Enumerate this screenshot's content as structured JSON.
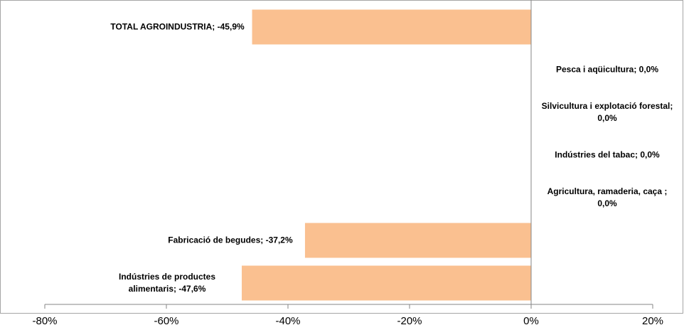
{
  "chart_data": {
    "type": "hbar",
    "values": [
      -45.9,
      0.0,
      0.0,
      0.0,
      0.0,
      -37.2,
      -47.6
    ],
    "value_labels": [
      "TOTAL AGROINDUSTRIA; -45,9%",
      "Pesca i aqüicultura; 0,0%",
      "Silvicultura i explotació forestal; 0,0%",
      "Indústries del tabac; 0,0%",
      "Agricultura, ramaderia, caça ; 0,0%",
      "Fabricació de begudes; -37,2%",
      "Indústries de productes alimentaris; -47,6%"
    ],
    "color": "#fac090",
    "xlim": [
      -80,
      20
    ],
    "xticks": [
      {
        "value": -80,
        "label": "-80%"
      },
      {
        "value": -60,
        "label": "-60%"
      },
      {
        "value": -40,
        "label": "-40%"
      },
      {
        "value": -20,
        "label": "-20%"
      },
      {
        "value": 0,
        "label": "0%"
      },
      {
        "value": 20,
        "label": "20%"
      }
    ]
  }
}
